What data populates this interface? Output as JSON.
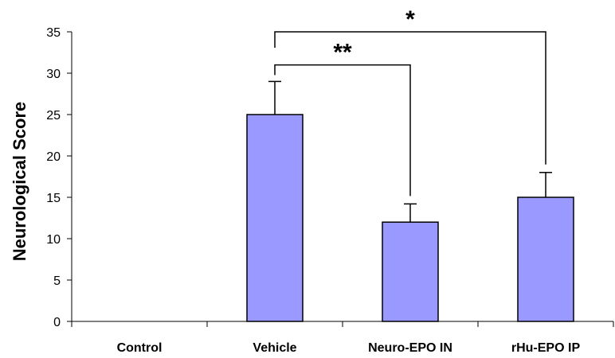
{
  "chart_data": {
    "type": "bar",
    "title": "",
    "xlabel": "",
    "ylabel": "Neurological Score",
    "categories": [
      "Control",
      "Vehicle",
      "Neuro-EPO IN",
      "rHu-EPO IP"
    ],
    "values": [
      0,
      25,
      12,
      15
    ],
    "error_plus": [
      0,
      4,
      2.2,
      3
    ],
    "ylim": [
      0,
      35
    ],
    "yticks": [
      0,
      5,
      10,
      15,
      20,
      25,
      30,
      35
    ],
    "grid": false,
    "bar_color": "#9999ff",
    "bar_edge_color": "#000000",
    "significance": [
      {
        "from": "Vehicle",
        "to": "Neuro-EPO IN",
        "label": "**"
      },
      {
        "from": "Vehicle",
        "to": "rHu-EPO IP",
        "label": "*"
      }
    ]
  }
}
